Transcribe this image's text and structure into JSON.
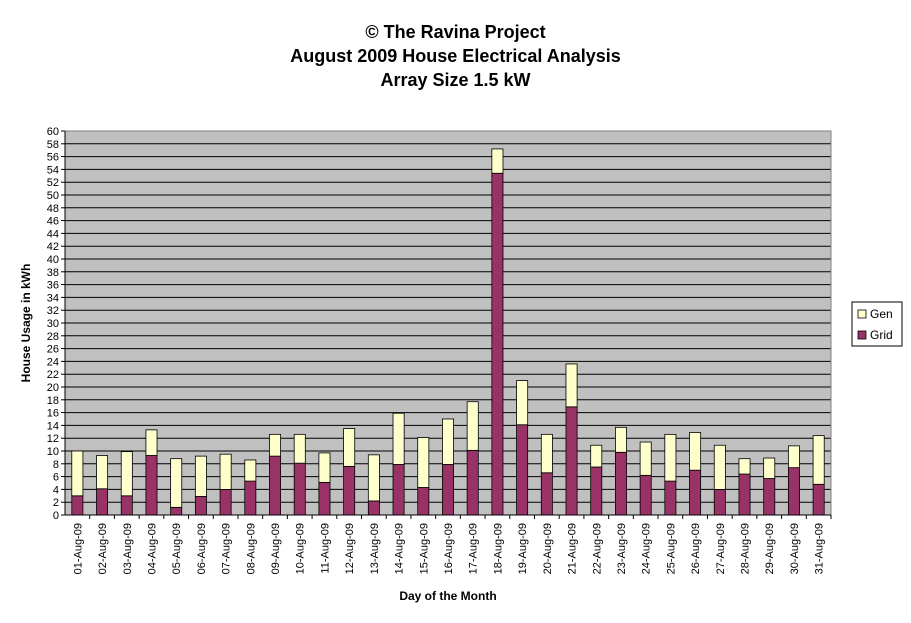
{
  "chart_data": {
    "type": "bar",
    "stacked": true,
    "title_lines": [
      "© The Ravina Project",
      "August 2009 House Electrical Analysis",
      "Array Size 1.5 kW"
    ],
    "xlabel": "Day of the Month",
    "ylabel": "House Usage in kWh",
    "ylim": [
      0,
      60
    ],
    "ytick_step": 2,
    "grid": true,
    "legend_position": "right",
    "categories": [
      "01-Aug-09",
      "02-Aug-09",
      "03-Aug-09",
      "04-Aug-09",
      "05-Aug-09",
      "06-Aug-09",
      "07-Aug-09",
      "08-Aug-09",
      "09-Aug-09",
      "10-Aug-09",
      "11-Aug-09",
      "12-Aug-09",
      "13-Aug-09",
      "14-Aug-09",
      "15-Aug-09",
      "16-Aug-09",
      "17-Aug-09",
      "18-Aug-09",
      "19-Aug-09",
      "20-Aug-09",
      "21-Aug-09",
      "22-Aug-09",
      "23-Aug-09",
      "24-Aug-09",
      "25-Aug-09",
      "26-Aug-09",
      "27-Aug-09",
      "28-Aug-09",
      "29-Aug-09",
      "30-Aug-09",
      "31-Aug-09"
    ],
    "series": [
      {
        "name": "Grid",
        "color": "#993366",
        "values": [
          3.0,
          4.1,
          3.0,
          9.3,
          1.2,
          2.9,
          4.0,
          5.3,
          9.2,
          8.1,
          5.1,
          7.6,
          2.2,
          7.9,
          4.3,
          7.9,
          10.1,
          53.4,
          14.1,
          6.6,
          16.9,
          7.5,
          9.8,
          6.2,
          5.3,
          7.0,
          4.0,
          6.4,
          5.7,
          7.4,
          4.8
        ]
      },
      {
        "name": "Gen",
        "color": "#FFFFCC",
        "values": [
          7.0,
          5.2,
          6.9,
          4.0,
          7.6,
          6.3,
          5.5,
          3.3,
          3.4,
          4.5,
          4.6,
          5.9,
          7.2,
          8.0,
          7.8,
          7.1,
          7.6,
          3.8,
          6.9,
          6.0,
          6.7,
          3.4,
          3.9,
          5.2,
          7.3,
          5.9,
          6.9,
          2.4,
          3.2,
          3.4,
          7.6
        ]
      }
    ]
  }
}
